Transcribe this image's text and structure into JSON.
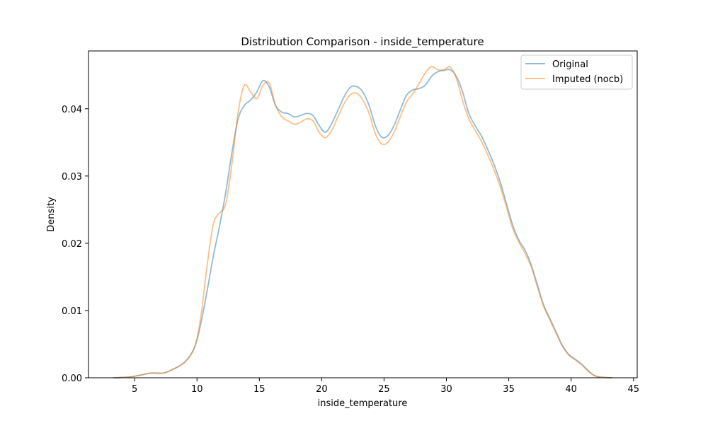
{
  "chart_data": {
    "type": "line",
    "title": "Distribution Comparison - inside_temperature",
    "xlabel": "inside_temperature",
    "ylabel": "Density",
    "xlim": [
      1.3,
      45.3
    ],
    "ylim": [
      0.0,
      0.0486
    ],
    "xticks": [
      5,
      10,
      15,
      20,
      25,
      30,
      35,
      40,
      45
    ],
    "yticks": [
      0.0,
      0.01,
      0.02,
      0.03,
      0.04
    ],
    "xtick_labels": [
      "5",
      "10",
      "15",
      "20",
      "25",
      "30",
      "35",
      "40",
      "45"
    ],
    "ytick_labels": [
      "0.00",
      "0.01",
      "0.02",
      "0.03",
      "0.04"
    ],
    "grid": false,
    "legend_position": "top-right",
    "series": [
      {
        "name": "Original",
        "color": "#1f77b4",
        "points": [
          [
            3.3,
            0.0
          ],
          [
            4.5,
            0.0001
          ],
          [
            5.5,
            0.0004
          ],
          [
            6.3,
            0.0007
          ],
          [
            7.3,
            0.0007
          ],
          [
            8.0,
            0.0012
          ],
          [
            9.0,
            0.0023
          ],
          [
            9.8,
            0.0045
          ],
          [
            10.3,
            0.008
          ],
          [
            10.8,
            0.0128
          ],
          [
            11.3,
            0.018
          ],
          [
            11.8,
            0.0225
          ],
          [
            12.3,
            0.0275
          ],
          [
            12.8,
            0.0335
          ],
          [
            13.3,
            0.0385
          ],
          [
            13.8,
            0.0405
          ],
          [
            14.3,
            0.0413
          ],
          [
            14.8,
            0.0425
          ],
          [
            15.3,
            0.0442
          ],
          [
            15.8,
            0.0432
          ],
          [
            16.3,
            0.0405
          ],
          [
            16.8,
            0.0395
          ],
          [
            17.3,
            0.0393
          ],
          [
            17.8,
            0.0388
          ],
          [
            18.3,
            0.039
          ],
          [
            18.8,
            0.0393
          ],
          [
            19.3,
            0.039
          ],
          [
            19.8,
            0.0375
          ],
          [
            20.3,
            0.0365
          ],
          [
            20.8,
            0.0378
          ],
          [
            21.3,
            0.0398
          ],
          [
            21.8,
            0.0418
          ],
          [
            22.3,
            0.0432
          ],
          [
            22.8,
            0.0433
          ],
          [
            23.3,
            0.0425
          ],
          [
            23.8,
            0.0405
          ],
          [
            24.3,
            0.0375
          ],
          [
            24.8,
            0.0358
          ],
          [
            25.3,
            0.036
          ],
          [
            25.8,
            0.0375
          ],
          [
            26.3,
            0.0398
          ],
          [
            26.8,
            0.042
          ],
          [
            27.3,
            0.0428
          ],
          [
            27.8,
            0.043
          ],
          [
            28.3,
            0.0435
          ],
          [
            28.8,
            0.0448
          ],
          [
            29.3,
            0.0455
          ],
          [
            29.8,
            0.0457
          ],
          [
            30.3,
            0.0458
          ],
          [
            30.8,
            0.0448
          ],
          [
            31.3,
            0.0425
          ],
          [
            31.8,
            0.0393
          ],
          [
            32.3,
            0.0375
          ],
          [
            32.8,
            0.036
          ],
          [
            33.3,
            0.034
          ],
          [
            33.8,
            0.0318
          ],
          [
            34.3,
            0.0292
          ],
          [
            34.8,
            0.026
          ],
          [
            35.3,
            0.0228
          ],
          [
            35.8,
            0.0205
          ],
          [
            36.3,
            0.019
          ],
          [
            36.8,
            0.0168
          ],
          [
            37.3,
            0.0138
          ],
          [
            37.8,
            0.0108
          ],
          [
            38.3,
            0.0088
          ],
          [
            38.8,
            0.0068
          ],
          [
            39.3,
            0.0048
          ],
          [
            39.8,
            0.0035
          ],
          [
            40.3,
            0.0028
          ],
          [
            40.8,
            0.0021
          ],
          [
            41.3,
            0.0012
          ],
          [
            41.8,
            0.0004
          ],
          [
            42.3,
            0.0001
          ],
          [
            43.3,
            0.0
          ]
        ]
      },
      {
        "name": "Imputed (nocb)",
        "color": "#ff7f0e",
        "points": [
          [
            3.3,
            0.0
          ],
          [
            4.5,
            0.0001
          ],
          [
            5.5,
            0.0004
          ],
          [
            6.3,
            0.0007
          ],
          [
            7.3,
            0.0007
          ],
          [
            8.0,
            0.0012
          ],
          [
            9.0,
            0.0023
          ],
          [
            9.8,
            0.0045
          ],
          [
            10.3,
            0.009
          ],
          [
            10.8,
            0.0165
          ],
          [
            11.3,
            0.0228
          ],
          [
            11.8,
            0.0245
          ],
          [
            12.3,
            0.0258
          ],
          [
            12.8,
            0.0318
          ],
          [
            13.3,
            0.0395
          ],
          [
            13.8,
            0.0435
          ],
          [
            14.3,
            0.0425
          ],
          [
            14.8,
            0.0415
          ],
          [
            15.3,
            0.0435
          ],
          [
            15.8,
            0.0438
          ],
          [
            16.3,
            0.0405
          ],
          [
            16.8,
            0.0388
          ],
          [
            17.3,
            0.0382
          ],
          [
            17.8,
            0.0377
          ],
          [
            18.3,
            0.038
          ],
          [
            18.8,
            0.0385
          ],
          [
            19.3,
            0.0382
          ],
          [
            19.8,
            0.0365
          ],
          [
            20.3,
            0.0357
          ],
          [
            20.8,
            0.0368
          ],
          [
            21.3,
            0.0388
          ],
          [
            21.8,
            0.0408
          ],
          [
            22.3,
            0.0421
          ],
          [
            22.8,
            0.0423
          ],
          [
            23.3,
            0.0413
          ],
          [
            23.8,
            0.0393
          ],
          [
            24.3,
            0.0363
          ],
          [
            24.8,
            0.0348
          ],
          [
            25.3,
            0.035
          ],
          [
            25.8,
            0.0365
          ],
          [
            26.3,
            0.0388
          ],
          [
            26.8,
            0.041
          ],
          [
            27.3,
            0.0422
          ],
          [
            27.8,
            0.0437
          ],
          [
            28.3,
            0.0453
          ],
          [
            28.8,
            0.0463
          ],
          [
            29.3,
            0.0458
          ],
          [
            29.8,
            0.0458
          ],
          [
            30.3,
            0.0462
          ],
          [
            30.8,
            0.0445
          ],
          [
            31.3,
            0.0412
          ],
          [
            31.8,
            0.0385
          ],
          [
            32.3,
            0.0368
          ],
          [
            32.8,
            0.0352
          ],
          [
            33.3,
            0.0332
          ],
          [
            33.8,
            0.031
          ],
          [
            34.3,
            0.0285
          ],
          [
            34.8,
            0.0255
          ],
          [
            35.3,
            0.0223
          ],
          [
            35.8,
            0.0202
          ],
          [
            36.3,
            0.0185
          ],
          [
            36.8,
            0.0165
          ],
          [
            37.3,
            0.0135
          ],
          [
            37.8,
            0.0106
          ],
          [
            38.3,
            0.0086
          ],
          [
            38.8,
            0.0066
          ],
          [
            39.3,
            0.0047
          ],
          [
            39.8,
            0.0034
          ],
          [
            40.3,
            0.0027
          ],
          [
            40.8,
            0.002
          ],
          [
            41.3,
            0.0011
          ],
          [
            41.8,
            0.0004
          ],
          [
            42.3,
            0.0001
          ],
          [
            43.3,
            0.0
          ]
        ]
      }
    ]
  }
}
